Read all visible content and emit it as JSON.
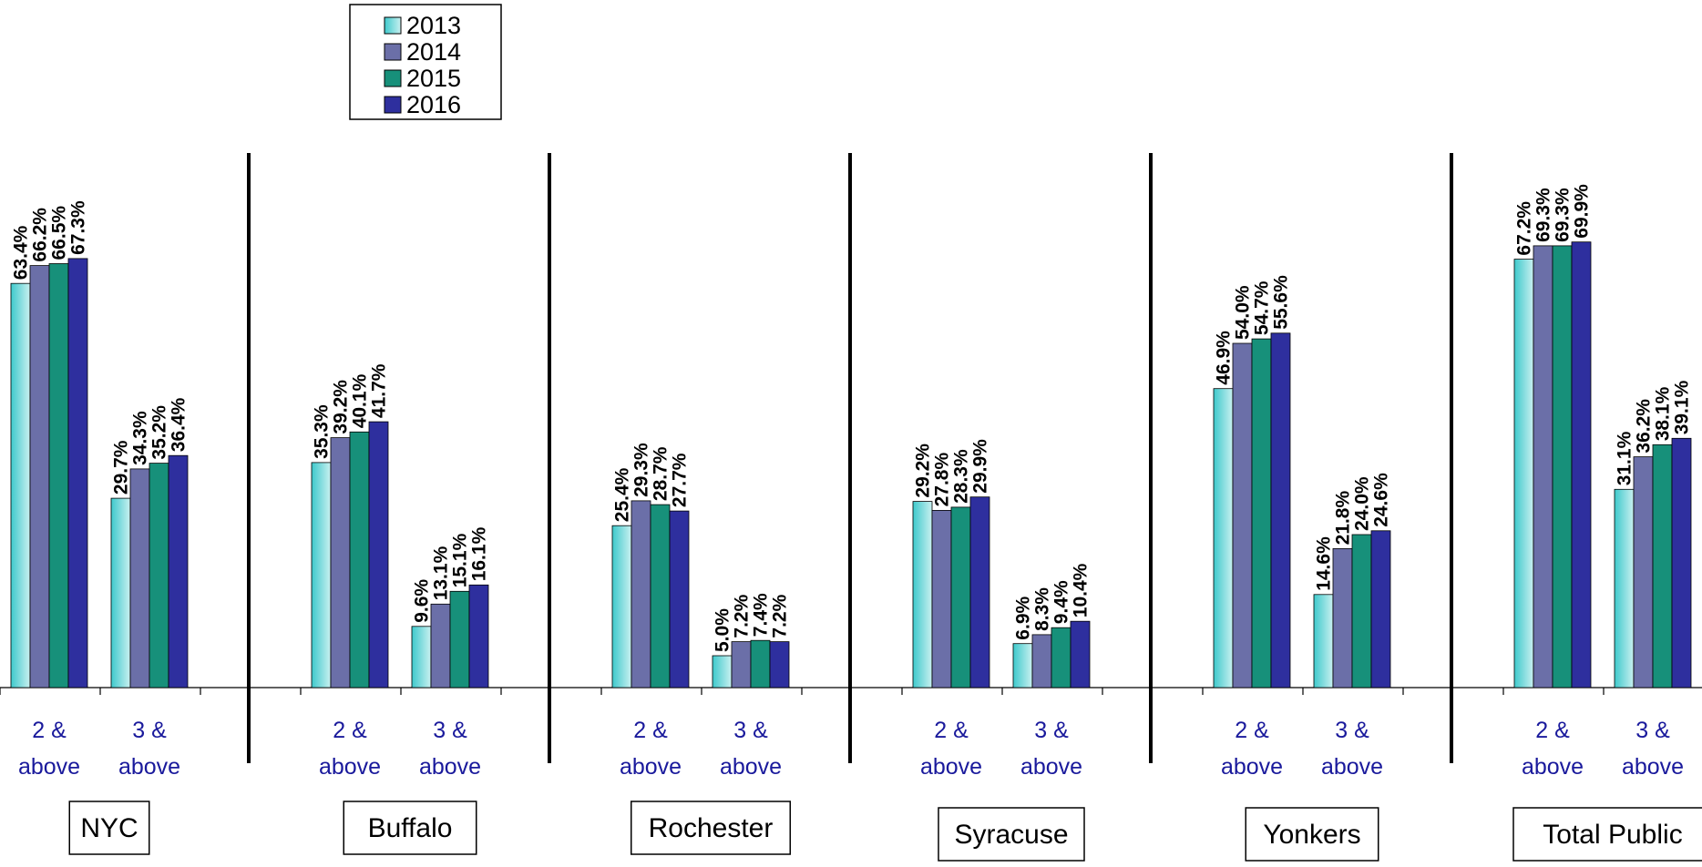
{
  "chart_data": {
    "type": "bar",
    "legend": {
      "position": "top-center",
      "entries": [
        "2013",
        "2014",
        "2015",
        "2016"
      ]
    },
    "series_colors": [
      "#5fd6d8",
      "#6b6fa8",
      "#17907a",
      "#2e2f9e"
    ],
    "categories": [
      "2 & above",
      "3 & above"
    ],
    "category_lines": [
      [
        "2 &",
        "above"
      ],
      [
        "3 &",
        "above"
      ]
    ],
    "ylim": [
      0,
      75
    ],
    "grid": false,
    "groups": [
      {
        "name": "NYC",
        "values": [
          [
            63.4,
            66.2,
            66.5,
            67.3
          ],
          [
            29.7,
            34.3,
            35.2,
            36.4
          ]
        ],
        "labels": [
          [
            "63.4%",
            "66.2%",
            "66.5%",
            "67.3%"
          ],
          [
            "29.7%",
            "34.3%",
            "35.2%",
            "36.4%"
          ]
        ]
      },
      {
        "name": "Buffalo",
        "values": [
          [
            35.3,
            39.2,
            40.1,
            41.7
          ],
          [
            9.6,
            13.1,
            15.1,
            16.1
          ]
        ],
        "labels": [
          [
            "35.3%",
            "39.2%",
            "40.1%",
            "41.7%"
          ],
          [
            "9.6%",
            "13.1%",
            "15.1%",
            "16.1%"
          ]
        ]
      },
      {
        "name": "Rochester",
        "values": [
          [
            25.4,
            29.3,
            28.7,
            27.7
          ],
          [
            5.0,
            7.2,
            7.4,
            7.2
          ]
        ],
        "labels": [
          [
            "25.4%",
            "29.3%",
            "28.7%",
            "27.7%"
          ],
          [
            "5.0%",
            "7.2%",
            "7.4%",
            "7.2%"
          ]
        ]
      },
      {
        "name": "Syracuse",
        "values": [
          [
            29.2,
            27.8,
            28.3,
            29.9
          ],
          [
            6.9,
            8.3,
            9.4,
            10.4
          ]
        ],
        "labels": [
          [
            "29.2%",
            "27.8%",
            "28.3%",
            "29.9%"
          ],
          [
            "6.9%",
            "8.3%",
            "9.4%",
            "10.4%"
          ]
        ]
      },
      {
        "name": "Yonkers",
        "values": [
          [
            46.9,
            54.0,
            54.7,
            55.6
          ],
          [
            14.6,
            21.8,
            24.0,
            24.6
          ]
        ],
        "labels": [
          [
            "46.9%",
            "54.0%",
            "54.7%",
            "55.6%"
          ],
          [
            "14.6%",
            "21.8%",
            "24.0%",
            "24.6%"
          ]
        ]
      },
      {
        "name": "Total Public",
        "values": [
          [
            67.2,
            69.3,
            69.3,
            69.9
          ],
          [
            31.1,
            36.2,
            38.1,
            39.1
          ]
        ],
        "labels": [
          [
            "67.2%",
            "69.3%",
            "69.3%",
            "69.9%"
          ],
          [
            "31.1%",
            "36.2%",
            "38.1%",
            "39.1%"
          ]
        ]
      }
    ]
  }
}
